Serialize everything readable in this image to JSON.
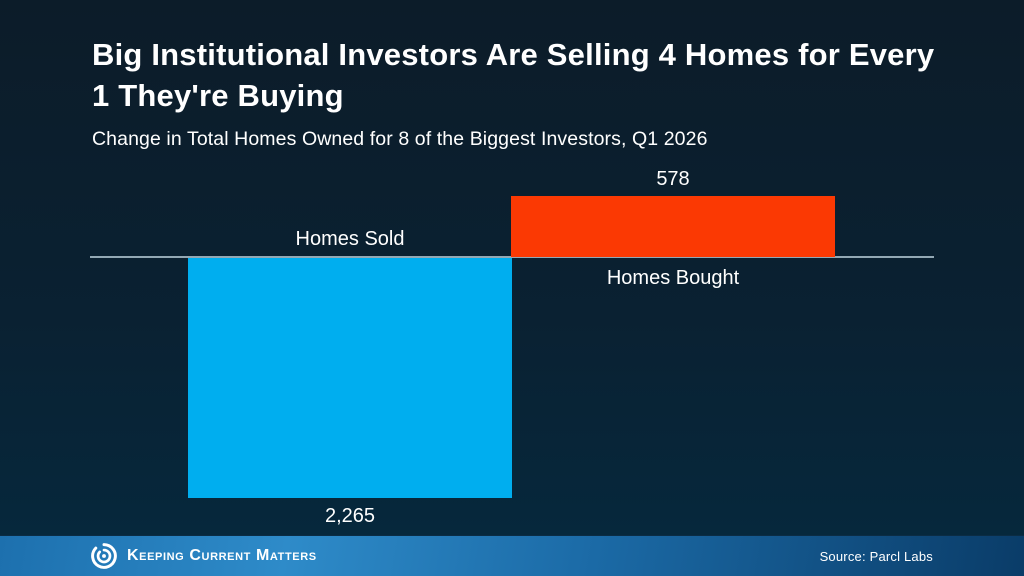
{
  "header": {
    "title": "Big Institutional Investors Are Selling 4 Homes for Every 1 They're Buying",
    "subtitle": "Change in Total Homes Owned for 8 of the Biggest Investors, Q1 2026"
  },
  "chart_data": {
    "type": "bar",
    "title": "Big Institutional Investors Are Selling 4 Homes for Every 1 They're Buying",
    "subtitle": "Change in Total Homes Owned for 8 of the Biggest Investors, Q1 2026",
    "categories": [
      "Homes Sold",
      "Homes Bought"
    ],
    "values": [
      -2265,
      578
    ],
    "data_labels": [
      "2,265",
      "578"
    ],
    "bar_colors": [
      "#00AEEF",
      "#FB3903"
    ],
    "baseline": 0,
    "ylim": [
      -2265,
      578
    ],
    "grid": false,
    "legend": "none",
    "axis_line_color": "#93A8B4",
    "orientation": "vertical-diverging"
  },
  "footer": {
    "brand": "Keeping Current Matters",
    "source": "Source: Parcl Labs"
  },
  "colors": {
    "background_top": "#0C1C29",
    "background_bottom": "#05293E",
    "text": "#FFFFFF",
    "footer_blue_bright": "#2E8BC9",
    "footer_blue_dark": "#0A3C68"
  }
}
